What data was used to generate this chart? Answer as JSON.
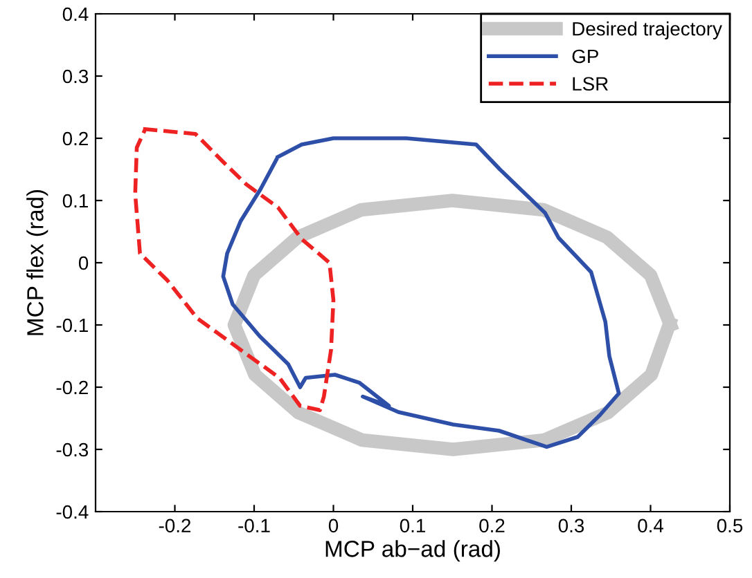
{
  "chart_data": {
    "type": "line",
    "xlabel": "MCP ab−ad (rad)",
    "ylabel": "MCP flex (rad)",
    "xlim": [
      -0.3,
      0.5
    ],
    "ylim": [
      -0.4,
      0.4
    ],
    "xticks": [
      -0.2,
      -0.1,
      0,
      0.1,
      0.2,
      0.3,
      0.4,
      0.5
    ],
    "yticks": [
      -0.4,
      -0.3,
      -0.2,
      -0.1,
      0,
      0.1,
      0.2,
      0.3,
      0.4
    ],
    "grid": false,
    "legend": "top right",
    "marker": "none",
    "series": [
      {
        "name": "Desired trajectory",
        "color": "#c8c8c8",
        "line_style": "solid",
        "x": [
          0.425,
          0.4,
          0.345,
          0.265,
          0.15,
          0.035,
          -0.045,
          -0.1,
          -0.125,
          -0.099,
          -0.044,
          0.036,
          0.151,
          0.266,
          0.346,
          0.401,
          0.424
        ],
        "values": [
          -0.1,
          -0.02,
          0.041,
          0.085,
          0.1,
          0.085,
          0.041,
          -0.02,
          -0.1,
          -0.18,
          -0.241,
          -0.285,
          -0.3,
          -0.285,
          -0.241,
          -0.18,
          -0.098
        ]
      },
      {
        "name": "GP",
        "color": "#2e4fa8",
        "line_style": "solid",
        "x": [
          -0.07,
          -0.04,
          0,
          0.035,
          0.064,
          0.092,
          0.18,
          0.21,
          0.267,
          0.284,
          0.325,
          0.343,
          0.348,
          0.36,
          0.336,
          0.308,
          0.269,
          0.209,
          0.151,
          0.082,
          0.037,
          0.07,
          0.033,
          0.002,
          -0.035,
          -0.042,
          -0.057,
          -0.093,
          -0.127,
          -0.139,
          -0.134,
          -0.117,
          -0.092,
          -0.071
        ],
        "values": [
          0.17,
          0.19,
          0.2,
          0.2,
          0.2,
          0.2,
          0.19,
          0.15,
          0.08,
          0.04,
          -0.015,
          -0.095,
          -0.15,
          -0.21,
          -0.245,
          -0.28,
          -0.296,
          -0.27,
          -0.26,
          -0.24,
          -0.215,
          -0.23,
          -0.193,
          -0.18,
          -0.185,
          -0.2,
          -0.163,
          -0.118,
          -0.067,
          -0.022,
          0.015,
          0.067,
          0.118,
          0.168
        ]
      },
      {
        "name": "LSR",
        "color": "#ee2222",
        "line_style": "dashed",
        "x": [
          -0.24,
          -0.174,
          -0.139,
          -0.11,
          -0.07,
          -0.04,
          -0.005,
          0,
          -0.003,
          -0.012,
          -0.017,
          -0.042,
          -0.068,
          -0.117,
          -0.172,
          -0.209,
          -0.244,
          -0.25,
          -0.248,
          -0.238
        ],
        "values": [
          0.215,
          0.207,
          0.162,
          0.126,
          0.089,
          0.038,
          0.0,
          -0.06,
          -0.14,
          -0.215,
          -0.237,
          -0.23,
          -0.185,
          -0.14,
          -0.089,
          -0.029,
          0.015,
          0.111,
          0.185,
          0.213
        ]
      }
    ]
  }
}
